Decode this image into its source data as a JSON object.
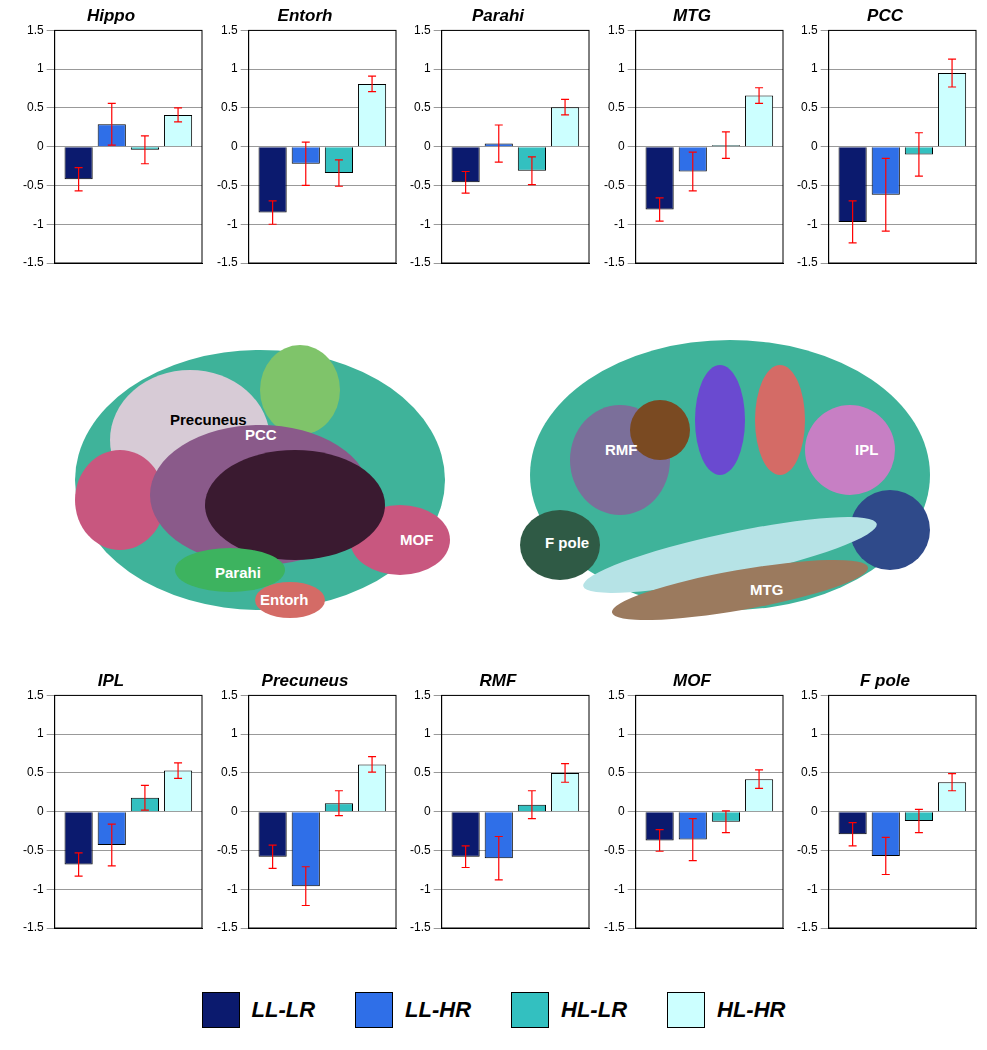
{
  "chart_data": [
    {
      "type": "bar",
      "title": "Hippo",
      "categories": [
        null
      ],
      "ylim": [
        -1.5,
        1.5
      ],
      "yticks": [
        -1.5,
        -1,
        -0.5,
        0,
        0.5,
        1,
        1.5
      ],
      "grid": true,
      "tick_labels": "y",
      "series": [
        {
          "name": "LL-LR",
          "color": "#0b1a6e",
          "values": [
            -0.42
          ],
          "errors": [
            0.15
          ]
        },
        {
          "name": "LL-HR",
          "color": "#2f6fe8",
          "values": [
            0.29
          ],
          "errors": [
            0.27
          ]
        },
        {
          "name": "HL-LR",
          "color": "#33c0c0",
          "values": [
            -0.04
          ],
          "errors": [
            0.18
          ]
        },
        {
          "name": "HL-HR",
          "color": "#ccffff",
          "values": [
            0.41
          ],
          "errors": [
            0.09
          ]
        }
      ]
    },
    {
      "type": "bar",
      "title": "Entorh",
      "categories": [
        null
      ],
      "ylim": [
        -1.5,
        1.5
      ],
      "yticks": [
        -1.5,
        -1,
        -0.5,
        0,
        0.5,
        1,
        1.5
      ],
      "grid": true,
      "tick_labels": "y",
      "series": [
        {
          "name": "LL-LR",
          "color": "#0b1a6e",
          "values": [
            -0.85
          ],
          "errors": [
            0.15
          ]
        },
        {
          "name": "LL-HR",
          "color": "#2f6fe8",
          "values": [
            -0.22
          ],
          "errors": [
            0.28
          ]
        },
        {
          "name": "HL-LR",
          "color": "#33c0c0",
          "values": [
            -0.34
          ],
          "errors": [
            0.17
          ]
        },
        {
          "name": "HL-HR",
          "color": "#ccffff",
          "values": [
            0.81
          ],
          "errors": [
            0.1
          ]
        }
      ]
    },
    {
      "type": "bar",
      "title": "Parahi",
      "categories": [
        null
      ],
      "ylim": [
        -1.5,
        1.5
      ],
      "yticks": [
        -1.5,
        -1,
        -0.5,
        0,
        0.5,
        1,
        1.5
      ],
      "grid": true,
      "tick_labels": "y",
      "series": [
        {
          "name": "LL-LR",
          "color": "#0b1a6e",
          "values": [
            -0.46
          ],
          "errors": [
            0.14
          ]
        },
        {
          "name": "LL-HR",
          "color": "#2f6fe8",
          "values": [
            0.04
          ],
          "errors": [
            0.24
          ]
        },
        {
          "name": "HL-LR",
          "color": "#33c0c0",
          "values": [
            -0.31
          ],
          "errors": [
            0.18
          ]
        },
        {
          "name": "HL-HR",
          "color": "#ccffff",
          "values": [
            0.51
          ],
          "errors": [
            0.1
          ]
        }
      ]
    },
    {
      "type": "bar",
      "title": "MTG",
      "categories": [
        null
      ],
      "ylim": [
        -1.5,
        1.5
      ],
      "yticks": [
        -1.5,
        -1,
        -0.5,
        0,
        0.5,
        1,
        1.5
      ],
      "grid": true,
      "tick_labels": "y",
      "series": [
        {
          "name": "LL-LR",
          "color": "#0b1a6e",
          "values": [
            -0.81
          ],
          "errors": [
            0.15
          ]
        },
        {
          "name": "LL-HR",
          "color": "#2f6fe8",
          "values": [
            -0.32
          ],
          "errors": [
            0.25
          ]
        },
        {
          "name": "HL-LR",
          "color": "#33c0c0",
          "values": [
            0.02
          ],
          "errors": [
            0.17
          ]
        },
        {
          "name": "HL-HR",
          "color": "#ccffff",
          "values": [
            0.66
          ],
          "errors": [
            0.1
          ]
        }
      ]
    },
    {
      "type": "bar",
      "title": "PCC",
      "categories": [
        null
      ],
      "ylim": [
        -1.5,
        1.5
      ],
      "yticks": [
        -1.5,
        -1,
        -0.5,
        0,
        0.5,
        1,
        1.5
      ],
      "grid": true,
      "tick_labels": "y",
      "series": [
        {
          "name": "LL-LR",
          "color": "#0b1a6e",
          "values": [
            -0.97
          ],
          "errors": [
            0.27
          ]
        },
        {
          "name": "LL-HR",
          "color": "#2f6fe8",
          "values": [
            -0.62
          ],
          "errors": [
            0.47
          ]
        },
        {
          "name": "HL-LR",
          "color": "#33c0c0",
          "values": [
            -0.1
          ],
          "errors": [
            0.28
          ]
        },
        {
          "name": "HL-HR",
          "color": "#ccffff",
          "values": [
            0.95
          ],
          "errors": [
            0.18
          ]
        }
      ]
    },
    {
      "type": "bar",
      "title": "IPL",
      "categories": [
        null
      ],
      "ylim": [
        -1.5,
        1.5
      ],
      "yticks": [
        -1.5,
        -1,
        -0.5,
        0,
        0.5,
        1,
        1.5
      ],
      "grid": true,
      "tick_labels": "y",
      "series": [
        {
          "name": "LL-LR",
          "color": "#0b1a6e",
          "values": [
            -0.68
          ],
          "errors": [
            0.15
          ]
        },
        {
          "name": "LL-HR",
          "color": "#2f6fe8",
          "values": [
            -0.43
          ],
          "errors": [
            0.27
          ]
        },
        {
          "name": "HL-LR",
          "color": "#33c0c0",
          "values": [
            0.18
          ],
          "errors": [
            0.16
          ]
        },
        {
          "name": "HL-HR",
          "color": "#ccffff",
          "values": [
            0.53
          ],
          "errors": [
            0.1
          ]
        }
      ]
    },
    {
      "type": "bar",
      "title": "Precuneus",
      "categories": [
        null
      ],
      "ylim": [
        -1.5,
        1.5
      ],
      "yticks": [
        -1.5,
        -1,
        -0.5,
        0,
        0.5,
        1,
        1.5
      ],
      "grid": true,
      "tick_labels": "y",
      "series": [
        {
          "name": "LL-LR",
          "color": "#0b1a6e",
          "values": [
            -0.58
          ],
          "errors": [
            0.15
          ]
        },
        {
          "name": "LL-HR",
          "color": "#2f6fe8",
          "values": [
            -0.96
          ],
          "errors": [
            0.25
          ]
        },
        {
          "name": "HL-LR",
          "color": "#33c0c0",
          "values": [
            0.11
          ],
          "errors": [
            0.16
          ]
        },
        {
          "name": "HL-HR",
          "color": "#ccffff",
          "values": [
            0.61
          ],
          "errors": [
            0.1
          ]
        }
      ]
    },
    {
      "type": "bar",
      "title": "RMF",
      "categories": [
        null
      ],
      "ylim": [
        -1.5,
        1.5
      ],
      "yticks": [
        -1.5,
        -1,
        -0.5,
        0,
        0.5,
        1,
        1.5
      ],
      "grid": true,
      "tick_labels": "y",
      "series": [
        {
          "name": "LL-LR",
          "color": "#0b1a6e",
          "values": [
            -0.58
          ],
          "errors": [
            0.14
          ]
        },
        {
          "name": "LL-HR",
          "color": "#2f6fe8",
          "values": [
            -0.6
          ],
          "errors": [
            0.28
          ]
        },
        {
          "name": "HL-LR",
          "color": "#33c0c0",
          "values": [
            0.09
          ],
          "errors": [
            0.18
          ]
        },
        {
          "name": "HL-HR",
          "color": "#ccffff",
          "values": [
            0.5
          ],
          "errors": [
            0.12
          ]
        }
      ]
    },
    {
      "type": "bar",
      "title": "MOF",
      "categories": [
        null
      ],
      "ylim": [
        -1.5,
        1.5
      ],
      "yticks": [
        -1.5,
        -1,
        -0.5,
        0,
        0.5,
        1,
        1.5
      ],
      "grid": true,
      "tick_labels": "y",
      "series": [
        {
          "name": "LL-LR",
          "color": "#0b1a6e",
          "values": [
            -0.37
          ],
          "errors": [
            0.14
          ]
        },
        {
          "name": "LL-HR",
          "color": "#2f6fe8",
          "values": [
            -0.36
          ],
          "errors": [
            0.27
          ]
        },
        {
          "name": "HL-LR",
          "color": "#33c0c0",
          "values": [
            -0.13
          ],
          "errors": [
            0.14
          ]
        },
        {
          "name": "HL-HR",
          "color": "#ccffff",
          "values": [
            0.42
          ],
          "errors": [
            0.12
          ]
        }
      ]
    },
    {
      "type": "bar",
      "title": "F pole",
      "categories": [
        null
      ],
      "ylim": [
        -1.5,
        1.5
      ],
      "yticks": [
        -1.5,
        -1,
        -0.5,
        0,
        0.5,
        1,
        1.5
      ],
      "grid": true,
      "tick_labels": "y",
      "series": [
        {
          "name": "LL-LR",
          "color": "#0b1a6e",
          "values": [
            -0.29
          ],
          "errors": [
            0.15
          ]
        },
        {
          "name": "LL-HR",
          "color": "#2f6fe8",
          "values": [
            -0.57
          ],
          "errors": [
            0.24
          ]
        },
        {
          "name": "HL-LR",
          "color": "#33c0c0",
          "values": [
            -0.12
          ],
          "errors": [
            0.15
          ]
        },
        {
          "name": "HL-HR",
          "color": "#ccffff",
          "values": [
            0.38
          ],
          "errors": [
            0.11
          ]
        }
      ]
    }
  ],
  "brain_labels": {
    "medial": [
      "Precuneus",
      "PCC",
      "Parahi",
      "Entorh",
      "MOF"
    ],
    "lateral": [
      "RMF",
      "F pole",
      "IPL",
      "MTG"
    ]
  }
}
